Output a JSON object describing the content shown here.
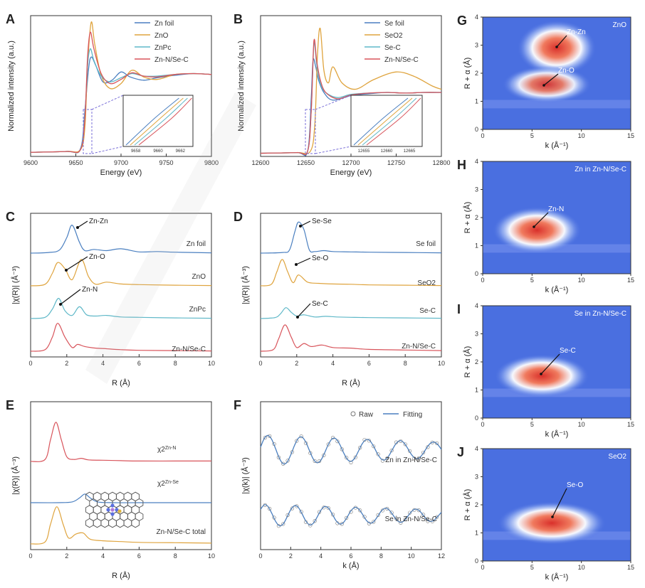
{
  "colors": {
    "blue": "#4a7fc0",
    "orange": "#dfa43e",
    "cyan": "#5fb8c8",
    "red": "#d8545b",
    "axis": "#333333",
    "wt_bg": "#4a6fe0",
    "wt_hot": "#e8403a"
  },
  "chart_data": [
    {
      "panel": "A",
      "type": "line",
      "xlabel": "Energy (eV)",
      "ylabel": "Normalized intensity (a.u.)",
      "xlim": [
        9600,
        9800
      ],
      "ylim": [
        0,
        1.7
      ],
      "xticks": [
        "9600",
        "9650",
        "9700",
        "9750",
        "9800"
      ],
      "legend": [
        "Zn foil",
        "ZnO",
        "ZnPc",
        "Zn-N/Se-C"
      ],
      "legend_position": "top-right",
      "inset": {
        "xticks": [
          "9658",
          "9660",
          "9662"
        ]
      },
      "series": [
        {
          "name": "Zn foil",
          "color": "blue",
          "x": [
            9600,
            9640,
            9655,
            9660,
            9664,
            9667,
            9672,
            9680,
            9690,
            9700,
            9710,
            9725,
            9740,
            9760,
            9780,
            9800
          ],
          "y": [
            0.05,
            0.06,
            0.09,
            0.55,
            1.05,
            1.2,
            1.1,
            0.9,
            0.92,
            1.02,
            0.96,
            0.92,
            0.95,
            0.98,
            1.0,
            0.99
          ]
        },
        {
          "name": "ZnO",
          "color": "orange",
          "x": [
            9600,
            9640,
            9655,
            9660,
            9663,
            9667,
            9671,
            9678,
            9688,
            9700,
            9712,
            9725,
            9740,
            9760,
            9780,
            9800
          ],
          "y": [
            0.05,
            0.06,
            0.08,
            0.35,
            1.1,
            1.62,
            1.35,
            0.98,
            0.82,
            0.88,
            1.04,
            0.96,
            0.93,
            0.99,
            1.0,
            0.99
          ]
        },
        {
          "name": "ZnPc",
          "color": "cyan",
          "x": [
            9600,
            9640,
            9655,
            9660,
            9663,
            9666,
            9670,
            9678,
            9688,
            9700,
            9712,
            9725,
            9740,
            9760,
            9780,
            9800
          ],
          "y": [
            0.05,
            0.06,
            0.08,
            0.5,
            1.1,
            1.3,
            1.16,
            0.97,
            0.9,
            0.95,
            1.0,
            0.97,
            0.97,
            0.99,
            1.0,
            0.99
          ]
        },
        {
          "name": "Zn-N/Se-C",
          "color": "red",
          "x": [
            9600,
            9640,
            9655,
            9660,
            9663,
            9666,
            9670,
            9678,
            9688,
            9700,
            9712,
            9725,
            9740,
            9760,
            9780,
            9800
          ],
          "y": [
            0.05,
            0.06,
            0.08,
            0.45,
            1.2,
            1.5,
            1.3,
            1.0,
            0.88,
            0.93,
            1.01,
            0.97,
            0.96,
            0.99,
            1.0,
            0.99
          ]
        }
      ]
    },
    {
      "panel": "B",
      "type": "line",
      "xlabel": "Energy (eV)",
      "ylabel": "Normalized intensity (a.u.)",
      "xlim": [
        12600,
        12800
      ],
      "ylim": [
        0,
        2.2
      ],
      "xticks": [
        "12600",
        "12650",
        "12700",
        "12750",
        "12800"
      ],
      "legend": [
        "Se foil",
        "SeO2",
        "Se-C",
        "Zn-N/Se-C"
      ],
      "legend_position": "top-right",
      "inset": {
        "xticks": [
          "12655",
          "12660",
          "12665"
        ]
      },
      "series": [
        {
          "name": "Se foil",
          "color": "blue",
          "x": [
            12600,
            12640,
            12652,
            12656,
            12658,
            12661,
            12664,
            12670,
            12680,
            12700,
            12720,
            12740,
            12760,
            12780,
            12800
          ],
          "y": [
            0.05,
            0.06,
            0.08,
            0.9,
            1.5,
            1.4,
            1.2,
            1.0,
            0.88,
            0.95,
            0.98,
            1.0,
            0.99,
            1.0,
            1.0
          ]
        },
        {
          "name": "SeO2",
          "color": "orange",
          "x": [
            12600,
            12640,
            12655,
            12660,
            12663,
            12666,
            12670,
            12675,
            12680,
            12690,
            12705,
            12725,
            12750,
            12770,
            12790,
            12800
          ],
          "y": [
            0.05,
            0.06,
            0.08,
            0.5,
            1.6,
            2.0,
            1.35,
            1.15,
            1.4,
            1.15,
            1.05,
            1.2,
            1.32,
            1.25,
            1.1,
            1.05
          ]
        },
        {
          "name": "Se-C",
          "color": "cyan",
          "x": [
            12600,
            12640,
            12652,
            12656,
            12659,
            12662,
            12666,
            12672,
            12685,
            12700,
            12720,
            12740,
            12760,
            12780,
            12800
          ],
          "y": [
            0.05,
            0.06,
            0.08,
            0.7,
            1.75,
            1.45,
            1.15,
            1.0,
            0.92,
            0.97,
            0.99,
            1.0,
            0.99,
            1.0,
            1.0
          ]
        },
        {
          "name": "Zn-N/Se-C",
          "color": "red",
          "x": [
            12600,
            12640,
            12652,
            12656,
            12659,
            12662,
            12666,
            12672,
            12685,
            12700,
            12720,
            12740,
            12760,
            12780,
            12800
          ],
          "y": [
            0.05,
            0.06,
            0.08,
            0.7,
            1.8,
            1.5,
            1.2,
            1.0,
            0.9,
            0.96,
            0.99,
            1.0,
            0.99,
            1.0,
            1.0
          ]
        }
      ]
    },
    {
      "panel": "C",
      "type": "line",
      "xlabel": "R (Å)",
      "ylabel": "|χ(R)| (Å⁻³)",
      "xlim": [
        0,
        10
      ],
      "xticks": [
        "0",
        "2",
        "4",
        "6",
        "8",
        "10"
      ],
      "labels": [
        "Zn foil",
        "ZnO",
        "ZnPc",
        "Zn-N/Se-C"
      ],
      "annotations": [
        "Zn-Zn",
        "Zn-O",
        "Zn-N"
      ],
      "series": [
        {
          "name": "Zn foil",
          "color": "blue",
          "offset": 3,
          "x": [
            0,
            1.0,
            1.6,
            2.0,
            2.3,
            2.7,
            3.0,
            3.5,
            4.2,
            5.0,
            6.0,
            7.0,
            8.0,
            10
          ],
          "y": [
            0,
            0.02,
            0.1,
            0.5,
            0.9,
            0.35,
            0.08,
            0.12,
            0.08,
            0.14,
            0.04,
            0.05,
            0.03,
            0.01
          ]
        },
        {
          "name": "ZnO",
          "color": "orange",
          "offset": 2,
          "x": [
            0,
            0.8,
            1.2,
            1.5,
            1.9,
            2.3,
            2.8,
            3.2,
            3.6,
            4.2,
            5.0,
            6.0,
            8.0,
            10
          ],
          "y": [
            0,
            0.05,
            0.4,
            0.75,
            0.55,
            0.2,
            0.85,
            0.3,
            0.05,
            0.12,
            0.06,
            0.04,
            0.02,
            0.01
          ]
        },
        {
          "name": "ZnPc",
          "color": "cyan",
          "offset": 1,
          "x": [
            0,
            0.8,
            1.2,
            1.55,
            1.9,
            2.3,
            2.7,
            3.1,
            3.6,
            4.2,
            5.0,
            6.0,
            8.0,
            10
          ],
          "y": [
            0,
            0.04,
            0.3,
            0.65,
            0.25,
            0.1,
            0.38,
            0.12,
            0.08,
            0.1,
            0.05,
            0.04,
            0.02,
            0.01
          ]
        },
        {
          "name": "Zn-N/Se-C",
          "color": "red",
          "offset": 0,
          "x": [
            0,
            0.8,
            1.2,
            1.5,
            1.9,
            2.3,
            2.6,
            3.0,
            3.6,
            4.2,
            5.0,
            6.0,
            8.0,
            10
          ],
          "y": [
            0,
            0.05,
            0.45,
            0.9,
            0.45,
            0.12,
            0.22,
            0.15,
            0.1,
            0.08,
            0.05,
            0.03,
            0.02,
            0.01
          ]
        }
      ]
    },
    {
      "panel": "D",
      "type": "line",
      "xlabel": "R (Å)",
      "ylabel": "|χ(R)| (Å⁻³)",
      "xlim": [
        0,
        10
      ],
      "xticks": [
        "0",
        "2",
        "4",
        "6",
        "8",
        "10"
      ],
      "labels": [
        "Se foil",
        "SeO2",
        "Se-C",
        "Zn-N/Se-C"
      ],
      "annotations": [
        "Se-Se",
        "Se-O",
        "Se-C"
      ],
      "series": [
        {
          "name": "Se foil",
          "color": "blue",
          "offset": 3,
          "x": [
            0,
            1.2,
            1.6,
            1.9,
            2.1,
            2.4,
            2.7,
            3.0,
            3.5,
            4.0,
            5.0,
            6.0,
            8.0,
            10
          ],
          "y": [
            0,
            0.02,
            0.1,
            0.7,
            1.0,
            0.75,
            0.1,
            0.05,
            0.08,
            0.05,
            0.04,
            0.03,
            0.02,
            0.01
          ]
        },
        {
          "name": "SeO2",
          "color": "orange",
          "offset": 2,
          "x": [
            0,
            0.6,
            0.9,
            1.2,
            1.5,
            1.8,
            2.1,
            2.6,
            3.2,
            4.0,
            5.0,
            6.0,
            8.0,
            10
          ],
          "y": [
            0,
            0.05,
            0.45,
            0.85,
            0.45,
            0.1,
            0.35,
            0.12,
            0.08,
            0.06,
            0.05,
            0.03,
            0.02,
            0.01
          ]
        },
        {
          "name": "Se-C",
          "color": "cyan",
          "offset": 1,
          "x": [
            0,
            0.8,
            1.1,
            1.4,
            1.7,
            2.0,
            2.4,
            3.0,
            3.6,
            4.2,
            5.0,
            6.0,
            8.0,
            10
          ],
          "y": [
            0,
            0.03,
            0.15,
            0.35,
            0.2,
            0.08,
            0.12,
            0.05,
            0.07,
            0.05,
            0.04,
            0.03,
            0.02,
            0.01
          ]
        },
        {
          "name": "Zn-N/Se-C",
          "color": "red",
          "offset": 0,
          "x": [
            0,
            0.7,
            1.0,
            1.35,
            1.7,
            2.0,
            2.4,
            2.8,
            3.4,
            4.0,
            5.0,
            6.0,
            8.0,
            10
          ],
          "y": [
            0,
            0.05,
            0.4,
            0.85,
            0.45,
            0.12,
            0.25,
            0.15,
            0.2,
            0.12,
            0.1,
            0.06,
            0.04,
            0.02
          ]
        }
      ]
    },
    {
      "panel": "E",
      "type": "line",
      "xlabel": "R (Å)",
      "ylabel": "|χ(R)| (Å⁻³)",
      "xlim": [
        0,
        10
      ],
      "xticks": [
        "0",
        "2",
        "4",
        "6",
        "8",
        "10"
      ],
      "labels": [
        "χ2",
        "Zn-N",
        "χ2",
        "Zn-Se",
        "Zn-N/Se-C total"
      ],
      "series": [
        {
          "name": "χ2 Zn-N",
          "color": "red",
          "offset": 2,
          "x": [
            0,
            0.8,
            1.1,
            1.4,
            1.7,
            2.0,
            2.4,
            2.8,
            3.2,
            4.0,
            5.0,
            6.0,
            8.0,
            10
          ],
          "y": [
            0,
            0.05,
            0.55,
            1.0,
            0.55,
            0.12,
            0.05,
            0.08,
            0.04,
            0.03,
            0.02,
            0.01,
            0.01,
            0.01
          ]
        },
        {
          "name": "χ2 Zn-Se",
          "color": "blue",
          "offset": 1,
          "x": [
            0,
            1.5,
            2.3,
            2.7,
            3.0,
            3.3,
            3.7,
            4.5,
            6.0,
            8.0,
            10
          ],
          "y": [
            0,
            0.0,
            0.02,
            0.12,
            0.22,
            0.12,
            0.02,
            0.0,
            0.0,
            0.0,
            0.0
          ]
        },
        {
          "name": "Zn-N/Se-C total",
          "color": "orange",
          "offset": 0,
          "x": [
            0,
            0.8,
            1.1,
            1.45,
            1.8,
            2.1,
            2.5,
            2.9,
            3.3,
            4.0,
            5.0,
            6.0,
            8.0,
            10
          ],
          "y": [
            0,
            0.05,
            0.5,
            0.95,
            0.5,
            0.15,
            0.25,
            0.28,
            0.12,
            0.08,
            0.06,
            0.04,
            0.03,
            0.02
          ]
        }
      ]
    },
    {
      "panel": "F",
      "type": "line",
      "xlabel": "k (Å)",
      "ylabel": "|χ(k)| (Å⁻³)",
      "xlim": [
        0,
        12
      ],
      "xticks": [
        "0",
        "2",
        "4",
        "6",
        "8",
        "10",
        "12"
      ],
      "legend": [
        "Raw",
        "Fitting"
      ],
      "legend_position": "top-right",
      "labels": [
        "Zn in Zn-N/Se-C",
        "Se in Zn-N/Se-C"
      ],
      "series": [
        {
          "name": "Zn in Zn-N/Se-C",
          "color": "blue",
          "offset": 1,
          "amplitude": 0.75,
          "period": 2.2,
          "phase": 0.2
        },
        {
          "name": "Se in Zn-N/Se-C",
          "color": "blue",
          "offset": 0,
          "amplitude": 0.55,
          "period": 2.0,
          "phase": 0.6
        }
      ]
    },
    {
      "panel": "G",
      "type": "heatmap",
      "xlabel": "k (Å⁻¹)",
      "ylabel": "R + α (Å)",
      "xlim": [
        0,
        15
      ],
      "ylim": [
        0,
        4
      ],
      "xticks": [
        "0",
        "5",
        "10",
        "15"
      ],
      "yticks": [
        "0",
        "1",
        "2",
        "3",
        "4"
      ],
      "title": "ZnO",
      "annotations": [
        "Zn-Zn",
        "Zn-O"
      ],
      "spots": [
        {
          "k": 7.5,
          "r": 2.9,
          "w": 4.0,
          "h": 0.45,
          "i": 1.0
        },
        {
          "k": 6.5,
          "r": 1.6,
          "w": 4.5,
          "h": 0.3,
          "i": 0.7
        }
      ]
    },
    {
      "panel": "H",
      "type": "heatmap",
      "xlabel": "k (Å⁻¹)",
      "ylabel": "R + α (Å)",
      "xlim": [
        0,
        15
      ],
      "ylim": [
        0,
        4
      ],
      "xticks": [
        "0",
        "5",
        "10",
        "15"
      ],
      "yticks": [
        "0",
        "1",
        "2",
        "3",
        "4"
      ],
      "title": "Zn in Zn-N/Se-C",
      "annotations": [
        "Zn-N"
      ],
      "spots": [
        {
          "k": 5.5,
          "r": 1.55,
          "w": 4.5,
          "h": 0.38,
          "i": 1.0
        }
      ]
    },
    {
      "panel": "I",
      "type": "heatmap",
      "xlabel": "k (Å⁻¹)",
      "ylabel": "R + α (Å)",
      "xlim": [
        0,
        15
      ],
      "ylim": [
        0,
        4
      ],
      "xticks": [
        "0",
        "5",
        "10",
        "15"
      ],
      "yticks": [
        "0",
        "1",
        "2",
        "3",
        "4"
      ],
      "title": "Se in Zn-N/Se-C",
      "annotations": [
        "Se-C"
      ],
      "spots": [
        {
          "k": 6.0,
          "r": 1.5,
          "w": 4.8,
          "h": 0.35,
          "i": 1.0
        }
      ]
    },
    {
      "panel": "J",
      "type": "heatmap",
      "xlabel": "k (Å⁻¹)",
      "ylabel": "R + α (Å)",
      "xlim": [
        0,
        15
      ],
      "ylim": [
        0,
        4
      ],
      "xticks": [
        "0",
        "5",
        "10",
        "15"
      ],
      "yticks": [
        "0",
        "1",
        "2",
        "3",
        "4"
      ],
      "title": "SeO2",
      "annotations": [
        "Se-O"
      ],
      "spots": [
        {
          "k": 7.0,
          "r": 1.35,
          "w": 5.5,
          "h": 0.35,
          "i": 1.0
        }
      ]
    }
  ]
}
